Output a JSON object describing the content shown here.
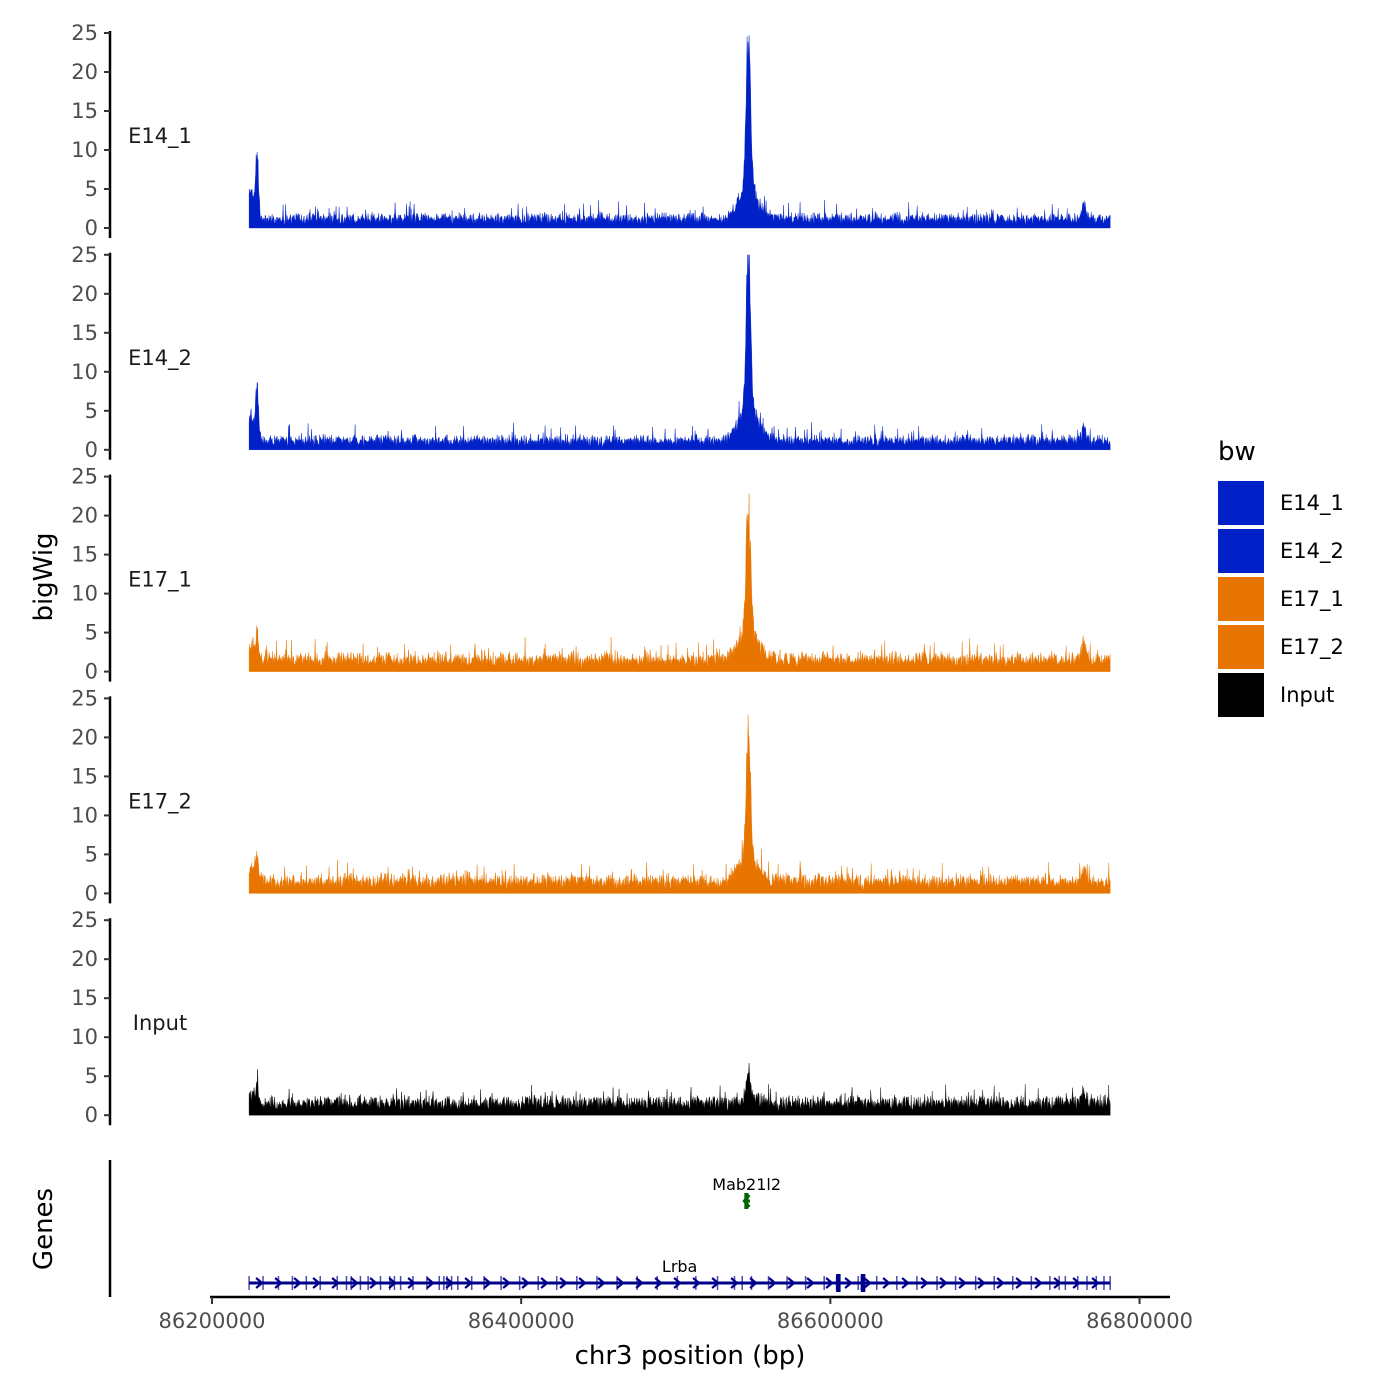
{
  "chart_data": {
    "type": "area",
    "x_label": "chr3 position (bp)",
    "y_label_tracks": "bigWig",
    "y_label_genes": "Genes",
    "x_range": [
      86224000,
      86781000
    ],
    "x_ticks": [
      86200000,
      86400000,
      86600000,
      86800000
    ],
    "x_tick_labels": [
      "86200000",
      "86400000",
      "86600000",
      "86800000"
    ],
    "x_axis_limits": [
      86200000,
      86810000
    ],
    "y_range": [
      0,
      25
    ],
    "y_ticks": [
      0,
      5,
      10,
      15,
      20,
      25
    ],
    "y_tick_labels": [
      "0",
      "5",
      "10",
      "15",
      "20",
      "25"
    ],
    "legend": {
      "title": "bw",
      "entries": [
        {
          "label": "E14_1",
          "color": "#0020c8"
        },
        {
          "label": "E14_2",
          "color": "#0020c8"
        },
        {
          "label": "E17_1",
          "color": "#e87500"
        },
        {
          "label": "E17_2",
          "color": "#e87500"
        },
        {
          "label": "Input",
          "color": "#000000"
        }
      ]
    },
    "series": [
      {
        "name": "E14_1",
        "color": "#0020c8",
        "baseline": 1.0,
        "noise": 1.3,
        "start_peak": 9,
        "main_peak": 22.5,
        "main_peak_x": 86547000,
        "second_peak_x": 86764000,
        "second_peak": 4.2
      },
      {
        "name": "E14_2",
        "color": "#0020c8",
        "baseline": 1.0,
        "noise": 1.3,
        "start_peak": 8,
        "main_peak": 23.5,
        "main_peak_x": 86547000,
        "second_peak_x": 86764000,
        "second_peak": 4.0
      },
      {
        "name": "E17_1",
        "color": "#e87500",
        "baseline": 1.4,
        "noise": 1.5,
        "start_peak": 4,
        "main_peak": 20,
        "main_peak_x": 86547000,
        "second_peak_x": 86764000,
        "second_peak": 4.8
      },
      {
        "name": "E17_2",
        "color": "#e87500",
        "baseline": 1.4,
        "noise": 1.5,
        "start_peak": 4.2,
        "main_peak": 17.5,
        "main_peak_x": 86547000,
        "second_peak_x": 86764000,
        "second_peak": 3.5
      },
      {
        "name": "Input",
        "color": "#000000",
        "baseline": 1.5,
        "noise": 1.2,
        "start_peak": 2.5,
        "main_peak": 3.3,
        "main_peak_x": 86547000,
        "second_peak_x": 86764000,
        "second_peak": 3.0
      }
    ],
    "genes": [
      {
        "name": "Mab21l2",
        "start": 86545000,
        "end": 86548000,
        "strand": "-",
        "color": "#006400",
        "row": 1
      },
      {
        "name": "Lrba",
        "start": 86224000,
        "end": 86781000,
        "strand": "+",
        "color": "#00008b",
        "row": 0,
        "exons": [
          86224000,
          86233000,
          86243000,
          86252000,
          86261000,
          86270000,
          86281000,
          86287000,
          86290000,
          86296000,
          86301000,
          86309000,
          86315000,
          86318000,
          86322000,
          86330000,
          86339000,
          86347000,
          86350000,
          86352000,
          86355000,
          86359000,
          86368000,
          86376000,
          86387000,
          86399000,
          86411000,
          86423000,
          86436000,
          86449000,
          86462000,
          86475000,
          86488000,
          86501000,
          86513000,
          86527000,
          86538000,
          86543000,
          86549000,
          86560000,
          86572000,
          86584000,
          86596000,
          86604000,
          86606000,
          86618000,
          86620000,
          86630000,
          86643000,
          86656000,
          86669000,
          86681000,
          86694000,
          86706000,
          86718000,
          86730000,
          86742000,
          86748000,
          86752000,
          86760000,
          86766000,
          86772000,
          86777000,
          86781000
        ]
      }
    ]
  }
}
